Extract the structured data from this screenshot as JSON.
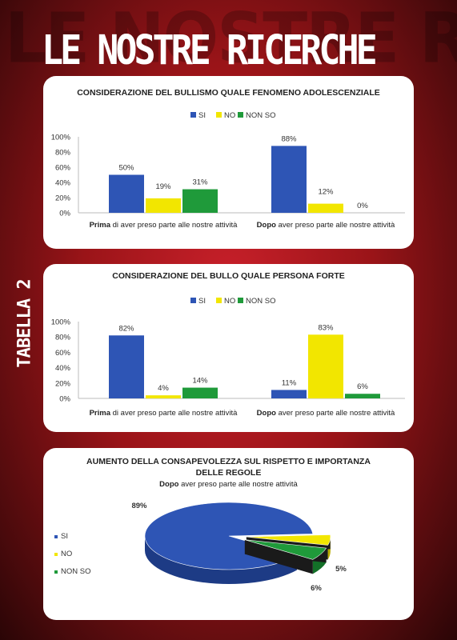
{
  "page": {
    "background_word": "LE NOSTRE RICERCHE",
    "title": "LE NOSTRE RICERCHE",
    "side_label": "TABELLA 2"
  },
  "colors": {
    "si": "#2e55b5",
    "no": "#f2e600",
    "non_so": "#1f9a3a",
    "background": "#b01a20"
  },
  "chart_data": [
    {
      "type": "bar",
      "title": "CONSIDERAZIONE DEL BULLISMO QUALE FENOMENO ADOLESCENZIALE",
      "legend": [
        "SI",
        "NO",
        "NON SO"
      ],
      "legend_position": "top",
      "categories": [
        {
          "bold": "Prima",
          "rest": " di aver preso parte alle nostre attività"
        },
        {
          "bold": "Dopo",
          "rest": " aver preso parte alle nostre attività"
        }
      ],
      "series": [
        {
          "name": "SI",
          "values": [
            50,
            88
          ],
          "labels": [
            "50%",
            "88%"
          ]
        },
        {
          "name": "NO",
          "values": [
            19,
            12
          ],
          "labels": [
            "19%",
            "12%"
          ]
        },
        {
          "name": "NON SO",
          "values": [
            31,
            0
          ],
          "labels": [
            "31%",
            "0%"
          ]
        }
      ],
      "yticks": [
        "100%",
        "80%",
        "60%",
        "40%",
        "20%",
        "0%"
      ],
      "ylim": [
        0,
        100
      ],
      "grid": false
    },
    {
      "type": "bar",
      "title": "CONSIDERAZIONE DEL BULLO QUALE PERSONA FORTE",
      "legend": [
        "SI",
        "NO",
        "NON SO"
      ],
      "legend_position": "top",
      "categories": [
        {
          "bold": "Prima",
          "rest": " di aver preso parte alle nostre attività"
        },
        {
          "bold": "Dopo",
          "rest": " aver preso parte alle nostre attività"
        }
      ],
      "series": [
        {
          "name": "SI",
          "values": [
            82,
            11
          ],
          "labels": [
            "82%",
            "11%"
          ]
        },
        {
          "name": "NO",
          "values": [
            4,
            83
          ],
          "labels": [
            "4%",
            "83%"
          ]
        },
        {
          "name": "NON SO",
          "values": [
            14,
            6
          ],
          "labels": [
            "14%",
            "6%"
          ]
        }
      ],
      "yticks": [
        "100%",
        "80%",
        "60%",
        "40%",
        "20%",
        "0%"
      ],
      "ylim": [
        0,
        100
      ],
      "grid": false
    },
    {
      "type": "pie",
      "title_lines": [
        "AUMENTO DELLA CONSAPEVOLEZZA SUL RISPETTO E IMPORTANZA",
        "DELLE REGOLE"
      ],
      "subtitle_bold": "Dopo",
      "subtitle_rest": " aver preso parte alle nostre attività",
      "legend": [
        "SI",
        "NO",
        "NON SO"
      ],
      "legend_position": "left",
      "slices": [
        {
          "name": "SI",
          "value": 89,
          "label": "89%"
        },
        {
          "name": "NO",
          "value": 5,
          "label": "5%"
        },
        {
          "name": "NON SO",
          "value": 6,
          "label": "6%"
        }
      ]
    }
  ]
}
